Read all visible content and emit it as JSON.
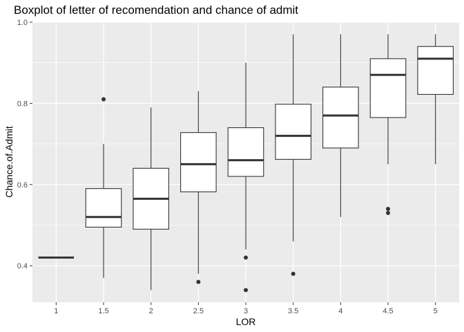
{
  "chart_data": {
    "type": "boxplot",
    "title": "Boxplot of letter of recomendation and chance of admit",
    "xlabel": "LOR",
    "ylabel": "Chance.of.Admit",
    "categories": [
      "1",
      "1.5",
      "2",
      "2.5",
      "3",
      "3.5",
      "4",
      "4.5",
      "5"
    ],
    "ylim": [
      0.31,
      1.0
    ],
    "yticks": [
      0.4,
      0.6,
      0.8,
      1.0
    ],
    "ytick_labels": [
      "0.4",
      "0.6",
      "0.8",
      "1.0"
    ],
    "grid": true,
    "boxes": [
      {
        "category": "1",
        "min": 0.42,
        "q1": 0.42,
        "median": 0.42,
        "q3": 0.42,
        "max": 0.42,
        "outliers": []
      },
      {
        "category": "1.5",
        "min": 0.37,
        "q1": 0.495,
        "median": 0.52,
        "q3": 0.59,
        "max": 0.7,
        "outliers": [
          0.81
        ]
      },
      {
        "category": "2",
        "min": 0.34,
        "q1": 0.49,
        "median": 0.565,
        "q3": 0.64,
        "max": 0.79,
        "outliers": []
      },
      {
        "category": "2.5",
        "min": 0.38,
        "q1": 0.582,
        "median": 0.65,
        "q3": 0.728,
        "max": 0.83,
        "outliers": [
          0.36
        ]
      },
      {
        "category": "3",
        "min": 0.44,
        "q1": 0.62,
        "median": 0.66,
        "q3": 0.74,
        "max": 0.9,
        "outliers": [
          0.42,
          0.34
        ]
      },
      {
        "category": "3.5",
        "min": 0.46,
        "q1": 0.662,
        "median": 0.72,
        "q3": 0.798,
        "max": 0.97,
        "outliers": [
          0.38
        ]
      },
      {
        "category": "4",
        "min": 0.52,
        "q1": 0.69,
        "median": 0.77,
        "q3": 0.84,
        "max": 0.97,
        "outliers": []
      },
      {
        "category": "4.5",
        "min": 0.65,
        "q1": 0.765,
        "median": 0.87,
        "q3": 0.91,
        "max": 0.97,
        "outliers": [
          0.54,
          0.53
        ]
      },
      {
        "category": "5",
        "min": 0.65,
        "q1": 0.822,
        "median": 0.91,
        "q3": 0.94,
        "max": 0.97,
        "outliers": []
      }
    ],
    "colors": {
      "panel_background": "#ebebeb",
      "grid_major": "#ffffff",
      "box_fill": "#ffffff",
      "box_stroke": "#333333",
      "outlier": "#333333"
    }
  }
}
